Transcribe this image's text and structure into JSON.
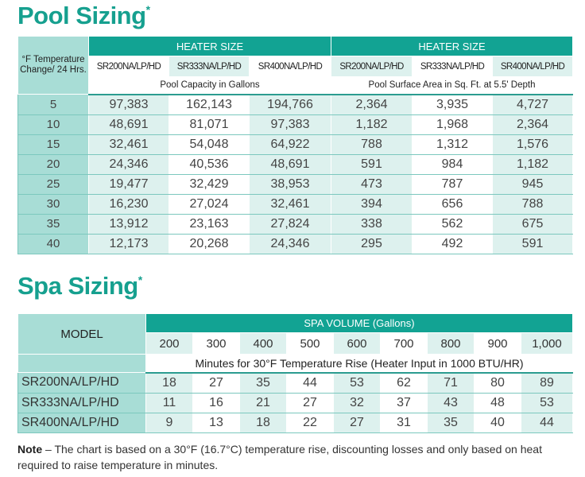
{
  "pool": {
    "title": "Pool Sizing",
    "asterisk": "*",
    "temp_header": "°F Temperature Change/ 24 Hrs.",
    "heater_size": "HEATER SIZE",
    "models": [
      "SR200NA/LP/HD",
      "SR333NA/LP/HD",
      "SR400NA/LP/HD"
    ],
    "capacity_caption": "Pool Capacity in Gallons",
    "area_caption": "Pool Surface Area in Sq. Ft. at 5.5' Depth",
    "rows": [
      [
        "5",
        "97,383",
        "162,143",
        "194,766",
        "2,364",
        "3,935",
        "4,727"
      ],
      [
        "10",
        "48,691",
        "81,071",
        "97,383",
        "1,182",
        "1,968",
        "2,364"
      ],
      [
        "15",
        "32,461",
        "54,048",
        "64,922",
        "788",
        "1,312",
        "1,576"
      ],
      [
        "20",
        "24,346",
        "40,536",
        "48,691",
        "591",
        "984",
        "1,182"
      ],
      [
        "25",
        "19,477",
        "32,429",
        "38,953",
        "473",
        "787",
        "945"
      ],
      [
        "30",
        "16,230",
        "27,024",
        "32,461",
        "394",
        "656",
        "788"
      ],
      [
        "35",
        "13,912",
        "23,163",
        "27,824",
        "338",
        "562",
        "675"
      ],
      [
        "40",
        "12,173",
        "20,268",
        "24,346",
        "295",
        "492",
        "591"
      ]
    ]
  },
  "spa": {
    "title": "Spa Sizing",
    "asterisk": "*",
    "model_header": "MODEL",
    "volume_header": "SPA VOLUME (Gallons)",
    "volumes": [
      "200",
      "300",
      "400",
      "500",
      "600",
      "700",
      "800",
      "900",
      "1,000"
    ],
    "caption": "Minutes for 30°F Temperature Rise (Heater Input in 1000 BTU/HR)",
    "rows": [
      {
        "model": "SR200NA/LP/HD",
        "values": [
          "18",
          "27",
          "35",
          "44",
          "53",
          "62",
          "71",
          "80",
          "89"
        ]
      },
      {
        "model": "SR333NA/LP/HD",
        "values": [
          "11",
          "16",
          "21",
          "27",
          "32",
          "37",
          "43",
          "48",
          "53"
        ]
      },
      {
        "model": "SR400NA/LP/HD",
        "values": [
          "9",
          "13",
          "18",
          "22",
          "27",
          "31",
          "35",
          "40",
          "44"
        ]
      }
    ]
  },
  "note": {
    "label": "Note",
    "text": " – The chart is based on a 30°F (16.7°C) temperature rise, discounting losses and only based on heat required to raise temperature in minutes."
  },
  "colors": {
    "accent": "#12a393",
    "side": "#a8ddd6",
    "light": "#ddf1ee"
  }
}
